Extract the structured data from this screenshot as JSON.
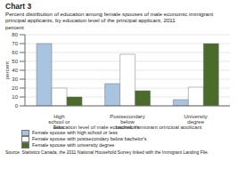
{
  "chart_data": {
    "type": "bar",
    "title": "Chart 3",
    "subtitle": "Percent distribution of education among female spouses of male economic immigrant principal applicants, by education level of the principal applicant, 2011",
    "y_label": "percent",
    "x_label": "Education level of male economic immigrant principal applicant",
    "categories": [
      "High school or less",
      "Postsecondary below bachelor's",
      "University degree"
    ],
    "series": [
      {
        "name": "Female spouse with high school or less",
        "color": "#a8c4e0",
        "values": [
          70,
          25,
          7
        ]
      },
      {
        "name": "Female spouse with postsecondary below bachelor's",
        "color": "#ffffff",
        "values": [
          20,
          58,
          21
        ]
      },
      {
        "name": "Female spouse with university degree",
        "color": "#4a6b2a",
        "values": [
          10,
          17,
          70
        ]
      }
    ],
    "ylim": [
      0,
      80
    ],
    "yticks": [
      0,
      10,
      20,
      30,
      40,
      50,
      60,
      70,
      80
    ],
    "grid": true,
    "annotations": [
      "Source: Statistics Canada, the 2011 National Household Survey linked with the Immigrant Landing File."
    ]
  }
}
